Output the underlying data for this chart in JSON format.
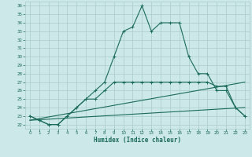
{
  "xlabel": "Humidex (Indice chaleur)",
  "bg_color": "#cce8e8",
  "grid_color": "#aacccc",
  "line_color": "#1a6b5a",
  "xlim": [
    -0.5,
    23.5
  ],
  "ylim": [
    21.5,
    36.5
  ],
  "yticks": [
    22,
    23,
    24,
    25,
    26,
    27,
    28,
    29,
    30,
    31,
    32,
    33,
    34,
    35,
    36
  ],
  "xticks": [
    0,
    1,
    2,
    3,
    4,
    5,
    6,
    7,
    8,
    9,
    10,
    11,
    12,
    13,
    14,
    15,
    16,
    17,
    18,
    19,
    20,
    21,
    22,
    23
  ],
  "line1_x": [
    0,
    1,
    2,
    3,
    4,
    5,
    6,
    7,
    8,
    9,
    10,
    11,
    12,
    13,
    14,
    15,
    16,
    17,
    18,
    19,
    20,
    21,
    22,
    23
  ],
  "line1_y": [
    23,
    22.5,
    22,
    22,
    23,
    24,
    25,
    26,
    27,
    30,
    33,
    33.5,
    36,
    33,
    34,
    34,
    34,
    30,
    28,
    28,
    26,
    26,
    24,
    23
  ],
  "line2_x": [
    0,
    1,
    2,
    3,
    4,
    5,
    6,
    7,
    8,
    9,
    10,
    11,
    12,
    13,
    14,
    15,
    16,
    17,
    18,
    19,
    20,
    21,
    22,
    23
  ],
  "line2_y": [
    23,
    22.5,
    22,
    22,
    23,
    24,
    25,
    25,
    26,
    27,
    27,
    27,
    27,
    27,
    27,
    27,
    27,
    27,
    27,
    27,
    26.5,
    26.5,
    24,
    23
  ],
  "line3_x": [
    0,
    23
  ],
  "line3_y": [
    22.5,
    27
  ],
  "line4_x": [
    0,
    23
  ],
  "line4_y": [
    22.5,
    24
  ]
}
